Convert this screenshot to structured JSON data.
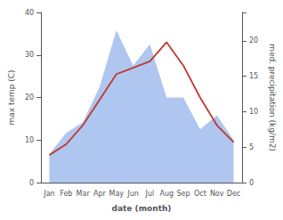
{
  "chart_data": {
    "type": "line",
    "categories": [
      "Jan",
      "Feb",
      "Mar",
      "Apr",
      "May",
      "Jun",
      "Jul",
      "Aug",
      "Sep",
      "Oct",
      "Nov",
      "Dec"
    ],
    "xlabel": "date (month)",
    "ylabel": "max temp (C)",
    "y2label": "med. precipitation (kg/m2)",
    "ylim": [
      0,
      40
    ],
    "yticks": [
      0,
      10,
      20,
      30,
      40
    ],
    "y2lim": [
      0,
      24
    ],
    "y2ticks": [
      0,
      5,
      10,
      15,
      20
    ],
    "grid": false,
    "series": [
      {
        "type": "area",
        "color": "#aec6f0",
        "axis": "y2",
        "values": [
          4.0,
          7.0,
          8.5,
          13.5,
          21.5,
          16.5,
          19.5,
          12.0,
          12.0,
          7.5,
          9.5,
          6.0
        ]
      },
      {
        "type": "line",
        "color": "#c0392b",
        "values": [
          6.5,
          9.0,
          13.5,
          19.5,
          25.5,
          27.0,
          28.5,
          33.0,
          27.5,
          20.0,
          13.5,
          9.5
        ]
      }
    ]
  }
}
